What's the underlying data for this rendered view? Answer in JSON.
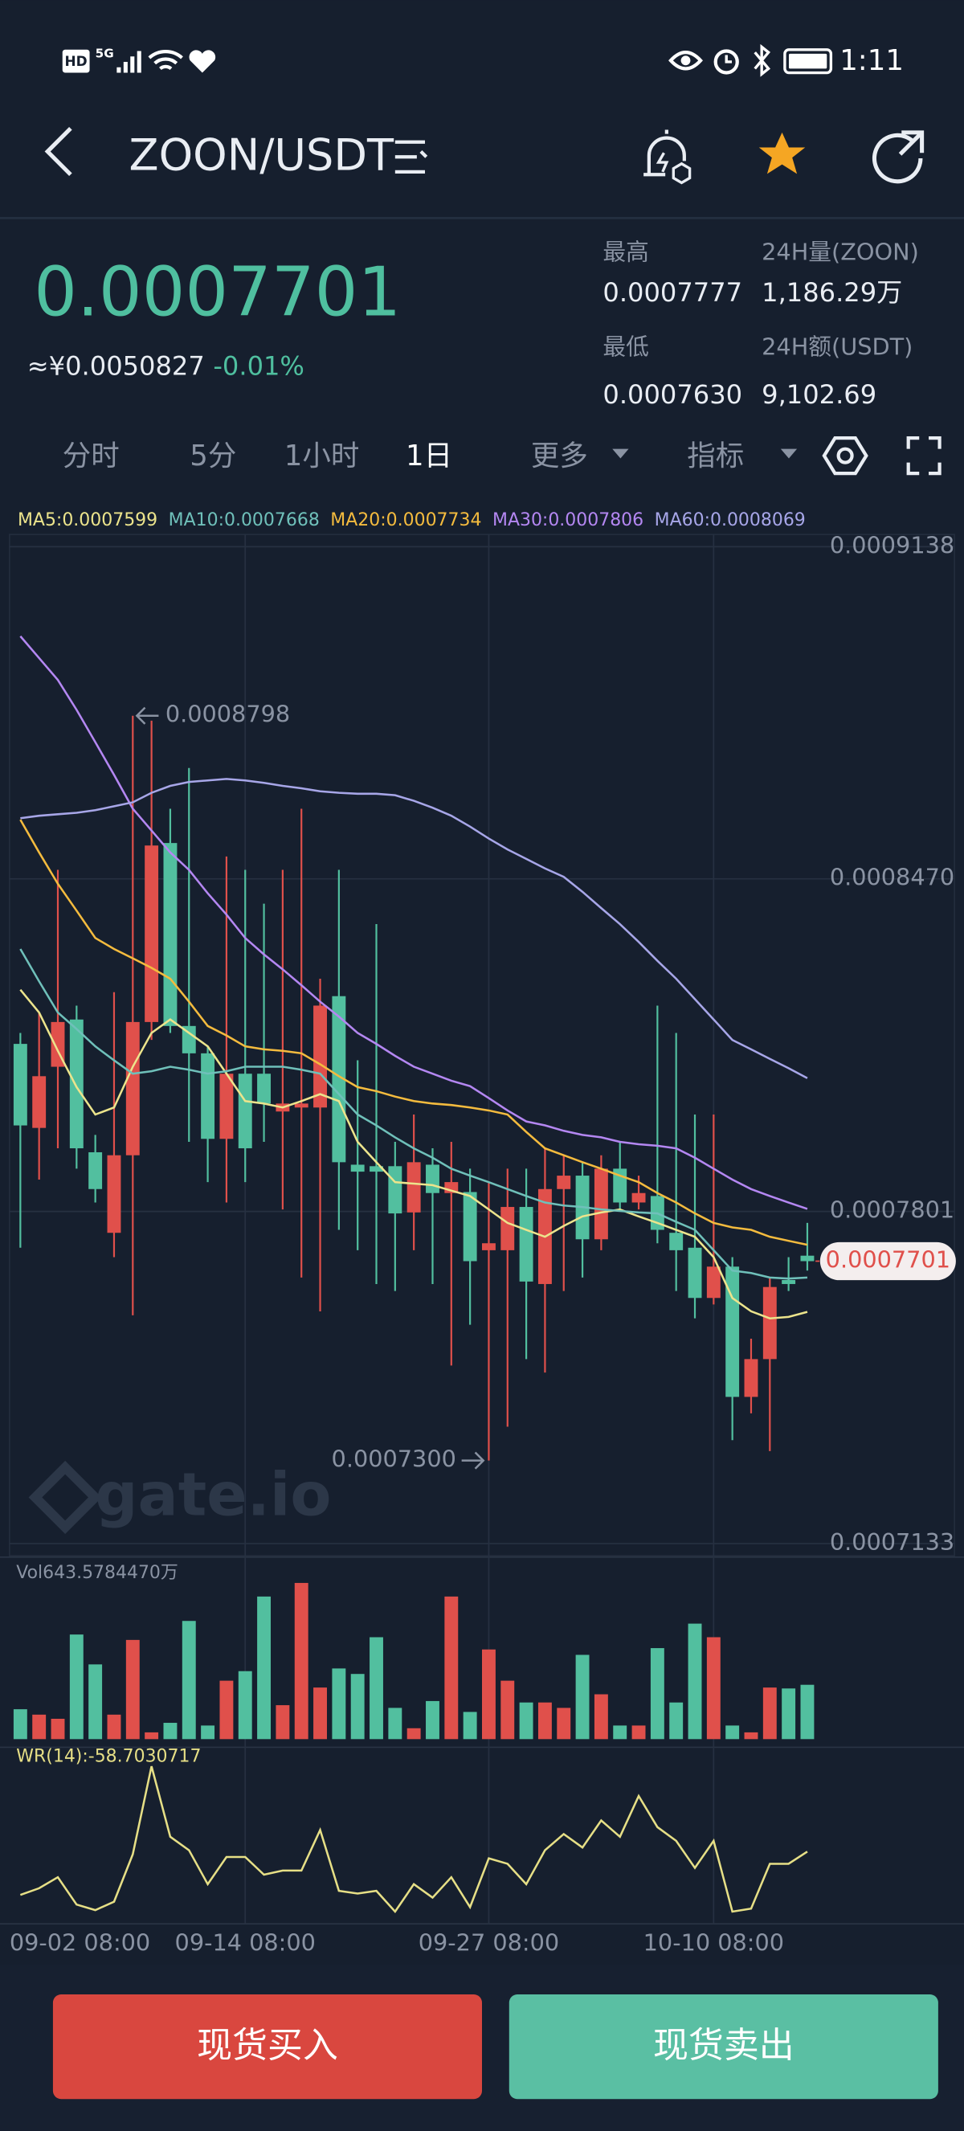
{
  "status_bar": {
    "network": [
      "HD",
      "5G"
    ],
    "time": "1:11"
  },
  "header": {
    "pair": "ZOON/USDT"
  },
  "ticker": {
    "price": "0.0007701",
    "cny": "≈¥0.0050827",
    "change": "-0.01%",
    "stats": [
      {
        "label": "最高",
        "value": "0.0007777"
      },
      {
        "label": "24H量(ZOON)",
        "value": "1,186.29万"
      },
      {
        "label": "最低",
        "value": "0.0007630"
      },
      {
        "label": "24H额(USDT)",
        "value": "9,102.69"
      }
    ]
  },
  "tabs": [
    "分时",
    "5分",
    "1小时",
    "1日",
    "更多",
    "指标"
  ],
  "chart_data": {
    "type": "candlestick",
    "categories": [
      "09-02 08:00",
      null,
      null,
      null,
      null,
      null,
      null,
      null,
      null,
      null,
      null,
      null,
      "09-14 08:00",
      null,
      null,
      null,
      null,
      null,
      null,
      null,
      null,
      null,
      null,
      null,
      null,
      "09-27 08:00",
      null,
      null,
      null,
      null,
      null,
      null,
      null,
      null,
      null,
      null,
      null,
      "10-10 08:00",
      null,
      null,
      null,
      null,
      null
    ],
    "open": [
      0.0008138,
      0.0007969,
      0.0008092,
      0.0008187,
      0.000792,
      0.0007758,
      0.0007914,
      0.0008182,
      0.0008542,
      0.0008174,
      0.0008119,
      0.0007947,
      0.0008078,
      0.0008078,
      0.0008002,
      0.000801,
      0.000801,
      0.0008234,
      0.0007895,
      0.0007892,
      0.0007892,
      0.0007799,
      0.0007895,
      0.0007838,
      0.000784,
      0.0007723,
      0.0007723,
      0.000781,
      0.0007655,
      0.0007846,
      0.0007873,
      0.0007745,
      0.0007887,
      0.0007819,
      0.0007832,
      0.0007758,
      0.0007728,
      0.0007627,
      0.000769,
      0.0007428,
      0.0007504,
      0.0007663,
      0.0007712
    ],
    "high": [
      0.000816,
      0.0008201,
      0.0008488,
      0.0008215,
      0.0007955,
      0.0008242,
      0.0008798,
      0.0008788,
      0.0008611,
      0.0008693,
      0.0008133,
      0.0008515,
      0.0008488,
      0.000842,
      0.0008488,
      0.0008611,
      0.0008269,
      0.0008488,
      0.0008105,
      0.0008379,
      0.0007941,
      0.0007996,
      0.0007928,
      0.0007941,
      0.0007887,
      0.000786,
      0.0007887,
      0.0007887,
      0.0007928,
      0.0007914,
      0.00079,
      0.0007914,
      0.0007941,
      0.0007873,
      0.0008215,
      0.000816,
      0.0007996,
      0.0007996,
      0.0007709,
      0.0007545,
      0.0007668,
      0.0007709,
      0.0007778
    ],
    "low": [
      0.0007728,
      0.0007865,
      0.0007928,
      0.0007887,
      0.0007819,
      0.0007709,
      0.0007592,
      0.0008146,
      0.000816,
      0.0007941,
      0.000786,
      0.0007819,
      0.000786,
      0.0007941,
      0.0007805,
      0.0007668,
      0.00076,
      0.0007764,
      0.0007723,
      0.0007655,
      0.0007641,
      0.0007723,
      0.0007655,
      0.0007491,
      0.0007573,
      0.00073,
      0.0007368,
      0.0007504,
      0.0007477,
      0.0007641,
      0.0007668,
      0.0007723,
      0.0007805,
      0.0007805,
      0.0007737,
      0.0007641,
      0.0007586,
      0.0007614,
      0.0007341,
      0.0007395,
      0.0007319,
      0.0007641,
      0.0007682
    ],
    "close": [
      0.0007974,
      0.0008073,
      0.0008182,
      0.0007928,
      0.0007846,
      0.0007914,
      0.0008182,
      0.0008537,
      0.0008174,
      0.0008119,
      0.0007947,
      0.0008078,
      0.0007928,
      0.0008018,
      0.0008018,
      0.0008018,
      0.0008215,
      0.00079,
      0.0007881,
      0.0007881,
      0.0007797,
      0.00079,
      0.0007838,
      0.000786,
      0.0007701,
      0.0007737,
      0.000781,
      0.000766,
      0.0007846,
      0.0007873,
      0.0007745,
      0.0007887,
      0.0007819,
      0.0007838,
      0.0007764,
      0.0007723,
      0.0007627,
      0.000769,
      0.0007428,
      0.0007504,
      0.0007649,
      0.0007655,
      0.0007701
    ],
    "up_color": "#e0504b",
    "down_color": "#52bf9f",
    "ylim": [
      0.0007133,
      0.0009138
    ],
    "yticks": [
      0.0009138,
      {
        "value": 0.000847,
        "label": "0.0008470"
      },
      0.0007801,
      0.0007133
    ],
    "grid": true,
    "high_label": "0.0008798",
    "low_label": "0.0007300",
    "series": [
      {
        "name": "MA5:0.0007599",
        "color": "#ece48c",
        "values": [
          0.0008247,
          0.0008201,
          0.0008124,
          0.0008051,
          0.0007996,
          0.000801,
          0.0008092,
          0.000816,
          0.0008187,
          0.000816,
          0.0008133,
          0.0008078,
          0.0008023,
          0.0008018,
          0.000801,
          0.0008023,
          0.0008037,
          0.0008023,
          0.0007941,
          0.00079,
          0.000786,
          0.0007857,
          0.0007854,
          0.0007843,
          0.0007832,
          0.0007805,
          0.0007778,
          0.0007764,
          0.000775,
          0.0007772,
          0.0007791,
          0.0007799,
          0.0007805,
          0.0007791,
          0.0007778,
          0.0007764,
          0.000775,
          0.0007709,
          0.0007627,
          0.00076,
          0.0007586,
          0.0007589,
          0.0007599
        ]
      },
      {
        "name": "MA10:0.0007668",
        "color": "#6fc0ba",
        "values": [
          0.0008329,
          0.0008264,
          0.0008201,
          0.0008168,
          0.0008133,
          0.0008105,
          0.0008078,
          0.0008083,
          0.0008092,
          0.0008086,
          0.0008078,
          0.0008083,
          0.0008092,
          0.0008092,
          0.0008092,
          0.0008086,
          0.0008078,
          0.0008037,
          0.0007996,
          0.0007974,
          0.000795,
          0.0007928,
          0.0007909,
          0.0007887,
          0.0007873,
          0.000786,
          0.0007846,
          0.0007832,
          0.0007819,
          0.0007813,
          0.000781,
          0.0007805,
          0.0007802,
          0.0007799,
          0.0007797,
          0.000778,
          0.0007764,
          0.0007723,
          0.0007682,
          0.0007677,
          0.0007668,
          0.0007666,
          0.0007668
        ]
      },
      {
        "name": "MA20:0.0007734",
        "color": "#f4bb3e",
        "values": [
          0.0008589,
          0.0008523,
          0.000846,
          0.0008406,
          0.0008351,
          0.0008329,
          0.000831,
          0.0008291,
          0.0008269,
          0.0008223,
          0.0008174,
          0.0008155,
          0.0008133,
          0.0008127,
          0.0008124,
          0.0008119,
          0.0008097,
          0.0008073,
          0.0008051,
          0.0008043,
          0.0008032,
          0.0008023,
          0.0008018,
          0.0008015,
          0.000801,
          0.0008004,
          0.0007996,
          0.0007961,
          0.0007928,
          0.0007914,
          0.00079,
          0.0007887,
          0.0007873,
          0.000786,
          0.0007838,
          0.0007819,
          0.0007797,
          0.0007778,
          0.0007769,
          0.0007764,
          0.000775,
          0.0007742,
          0.0007734
        ]
      },
      {
        "name": "MA30:0.0007806",
        "color": "#b487f2",
        "values": [
          0.0008958,
          0.0008914,
          0.000887,
          0.000881,
          0.0008745,
          0.0008679,
          0.0008611,
          0.0008567,
          0.0008523,
          0.0008488,
          0.0008441,
          0.0008398,
          0.0008351,
          0.0008318,
          0.0008288,
          0.0008256,
          0.0008223,
          0.0008193,
          0.000816,
          0.0008138,
          0.0008114,
          0.0008092,
          0.0008078,
          0.0008064,
          0.0008053,
          0.0008029,
          0.0008004,
          0.0007982,
          0.0007974,
          0.0007963,
          0.0007955,
          0.000795,
          0.0007941,
          0.0007936,
          0.0007933,
          0.0007928,
          0.0007909,
          0.0007887,
          0.0007865,
          0.0007846,
          0.0007832,
          0.0007819,
          0.0007806
        ]
      },
      {
        "name": "MA60:0.0008069",
        "color": "#a7a6e8",
        "values": [
          0.0008592,
          0.0008597,
          0.00086,
          0.0008603,
          0.0008608,
          0.0008616,
          0.0008624,
          0.0008643,
          0.0008657,
          0.0008665,
          0.0008668,
          0.0008671,
          0.0008668,
          0.0008663,
          0.0008657,
          0.0008652,
          0.0008646,
          0.0008643,
          0.0008641,
          0.0008641,
          0.0008638,
          0.0008627,
          0.0008613,
          0.0008597,
          0.0008575,
          0.0008551,
          0.0008529,
          0.000851,
          0.0008491,
          0.0008474,
          0.0008444,
          0.0008411,
          0.0008379,
          0.0008343,
          0.0008305,
          0.0008269,
          0.0008228,
          0.0008187,
          0.0008146,
          0.0008127,
          0.0008108,
          0.0008089,
          0.0008069
        ]
      }
    ],
    "volume": {
      "label": "Vol643.5784470万",
      "values": [
        354,
        290,
        241,
        1239,
        885,
        290,
        1175,
        80,
        193,
        1400,
        161,
        692,
        805,
        1689,
        402,
        1850,
        611,
        837,
        772,
        1207,
        370,
        129,
        451,
        1689,
        322,
        1062,
        692,
        434,
        434,
        370,
        998,
        531,
        161,
        161,
        1078,
        434,
        1368,
        1207,
        161,
        80,
        611,
        600,
        643.578447
      ]
    },
    "wr": {
      "label": "WR(14):-58.7030717",
      "color": "#e6df86",
      "values": [
        -88.5,
        -83.9,
        -76.4,
        -95.1,
        -99,
        -93.2,
        -60.6,
        0,
        -48.5,
        -57.8,
        -81.1,
        -62.4,
        -62.4,
        -74.6,
        -71.8,
        -71.8,
        -43.8,
        -85.7,
        -87.6,
        -85.7,
        -100,
        -81.1,
        -90.4,
        -76.4,
        -96.9,
        -63.4,
        -67.1,
        -81.1,
        -57.8,
        -46.6,
        -55.9,
        -37.3,
        -48.5,
        -20.5,
        -41.9,
        -51.3,
        -69.9,
        -51.3,
        -100,
        -97.9,
        -67.1,
        -67.1,
        -58.7030717
      ]
    }
  },
  "watermark": "gate.io",
  "buttons": [
    "现货买入",
    "现货卖出"
  ]
}
